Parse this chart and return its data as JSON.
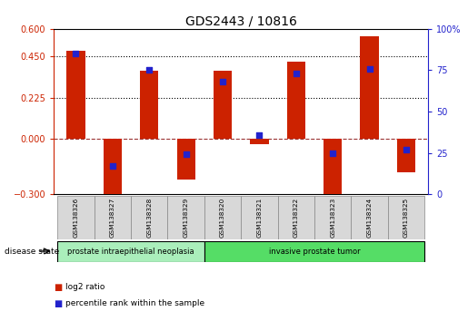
{
  "title": "GDS2443 / 10816",
  "samples": [
    "GSM138326",
    "GSM138327",
    "GSM138328",
    "GSM138329",
    "GSM138320",
    "GSM138321",
    "GSM138322",
    "GSM138323",
    "GSM138324",
    "GSM138325"
  ],
  "log2_ratio": [
    0.48,
    -0.38,
    0.37,
    -0.22,
    0.37,
    -0.03,
    0.42,
    -0.32,
    0.56,
    -0.18
  ],
  "percentile_rank": [
    85,
    17,
    75,
    24,
    68,
    36,
    73,
    25,
    76,
    27
  ],
  "ylim_left": [
    -0.3,
    0.6
  ],
  "ylim_right": [
    0,
    100
  ],
  "left_yticks": [
    -0.3,
    0,
    0.225,
    0.45,
    0.6
  ],
  "right_yticks": [
    0,
    25,
    50,
    75,
    100
  ],
  "bar_color": "#cc2200",
  "dot_color": "#2222cc",
  "zero_line_color": "#993333",
  "groups": [
    {
      "label": "prostate intraepithelial neoplasia",
      "start": 0,
      "end": 4,
      "color": "#aaeebb"
    },
    {
      "label": "invasive prostate tumor",
      "start": 4,
      "end": 10,
      "color": "#55dd66"
    }
  ],
  "disease_state_label": "disease state",
  "legend_bar_label": "log2 ratio",
  "legend_dot_label": "percentile rank within the sample",
  "dotted_line_color": "#000000",
  "bar_width": 0.5,
  "dot_size": 22,
  "bg_color": "#ffffff",
  "sample_box_color": "#d8d8d8"
}
